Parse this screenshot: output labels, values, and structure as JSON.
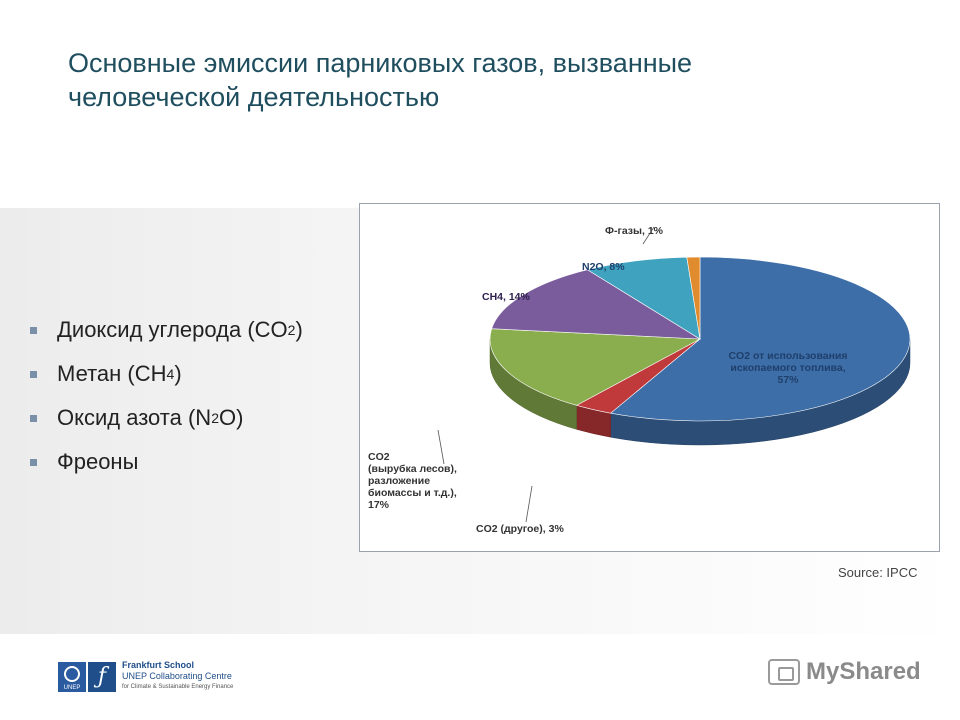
{
  "slide": {
    "title": "Основные эмиссии парниковых газов, вызванные человеческой деятельностью",
    "bullets": [
      {
        "text": "Диоксид углерода (CO",
        "sub": "2",
        "tail": ")"
      },
      {
        "text": "Метан (CH",
        "sub": "4",
        "tail": ")"
      },
      {
        "text": "Оксид азота (N",
        "sub": "2",
        "tail": "O)"
      },
      {
        "text": "Фреоны",
        "sub": "",
        "tail": ""
      }
    ],
    "source": "Source: IPCC"
  },
  "chart_data": {
    "type": "pie",
    "title": "",
    "slices": [
      {
        "label": "CO2 от использования ископаемого топлива",
        "value": 57,
        "display": "57%",
        "color": "#3d6ea8"
      },
      {
        "label": "CO2 (другое)",
        "value": 3,
        "display": "3%",
        "color": "#c0393b"
      },
      {
        "label": "CO2 (вырубка лесов), разложение биомассы и т.д.",
        "value": 17,
        "display": "17%",
        "color": "#8aad4e"
      },
      {
        "label": "CH4",
        "value": 14,
        "display": "14%",
        "color": "#7a5b9c"
      },
      {
        "label": "N2O",
        "value": 8,
        "display": "8%",
        "color": "#3fa3bf"
      },
      {
        "label": "Ф-газы",
        "value": 1,
        "display": "1%",
        "color": "#e08b2e"
      }
    ],
    "labels_text": {
      "fossil": [
        "CO2 от использования",
        "ископаемого топлива,",
        "57%"
      ],
      "other": "CO2 (другое), 3%",
      "forest": [
        "CO2",
        "(вырубка лесов),",
        "разложение",
        "биомассы и т.д.),",
        "17%"
      ],
      "ch4": "CH4, 14%",
      "n2o": "N2O, 8%",
      "fgas": "Ф-газы, 1%"
    }
  },
  "footer": {
    "unep": "UNEP",
    "fs_line1": "Frankfurt School",
    "fs_line2": "UNEP Collaborating Centre",
    "fs_line3": "for Climate & Sustainable Energy Finance",
    "brand": "MyShared"
  }
}
